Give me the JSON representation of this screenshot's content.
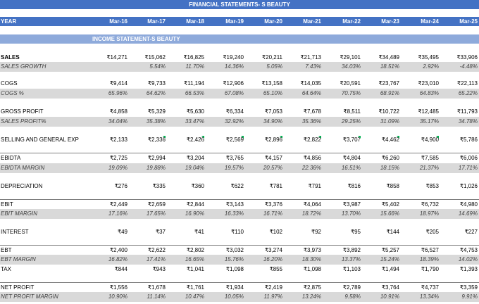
{
  "title": "FINANCIAL STATEMENTS- S BEAUTY",
  "header": {
    "label": "YEAR",
    "years": [
      "Mar-16",
      "Mar-17",
      "Mar-18",
      "Mar-19",
      "Mar-20",
      "Mar-21",
      "Mar-22",
      "Mar-23",
      "Mar-24",
      "Mar-25"
    ]
  },
  "section": "INCOME STATEMENT-S BEAUTY",
  "rows": [
    {
      "label": "SALES",
      "type": "value",
      "bold": true,
      "values": [
        "₹14,271",
        "₹15,062",
        "₹16,825",
        "₹19,240",
        "₹20,211",
        "₹21,713",
        "₹29,101",
        "₹34,489",
        "₹35,495",
        "₹33,906"
      ]
    },
    {
      "label": "SALES GROWTH",
      "type": "pct",
      "values": [
        "",
        "5.54%",
        "11.70%",
        "14.36%",
        "5.05%",
        "7.43%",
        "34.03%",
        "18.51%",
        "2.92%",
        "-4.48%"
      ]
    },
    {
      "label": "COGS",
      "type": "value",
      "values": [
        "₹9,414",
        "₹9,733",
        "₹11,194",
        "₹12,906",
        "₹13,158",
        "₹14,035",
        "₹20,591",
        "₹23,767",
        "₹23,010",
        "₹22,113"
      ]
    },
    {
      "label": "COGS %",
      "type": "pct",
      "values": [
        "65.96%",
        "64.62%",
        "66.53%",
        "67.08%",
        "65.10%",
        "64.64%",
        "70.75%",
        "68.91%",
        "64.83%",
        "65.22%"
      ]
    },
    {
      "label": "GROSS PROFIT",
      "type": "value",
      "values": [
        "₹4,858",
        "₹5,329",
        "₹5,630",
        "₹6,334",
        "₹7,053",
        "₹7,678",
        "₹8,511",
        "₹10,722",
        "₹12,485",
        "₹11,793"
      ]
    },
    {
      "label": "SALES PROFIT%",
      "type": "pct",
      "values": [
        "34.04%",
        "35.38%",
        "33.47%",
        "32.92%",
        "34.90%",
        "35.36%",
        "29.25%",
        "31.09%",
        "35.17%",
        "34.78%"
      ]
    },
    {
      "label": "SELLING AND GENERAL EXP",
      "type": "value",
      "values": [
        "₹2,133",
        "₹2,336",
        "₹2,426",
        "₹2,569",
        "₹2,896",
        "₹2,822",
        "₹3,707",
        "₹4,462",
        "₹4,900",
        "₹5,786"
      ]
    },
    {
      "label": "EBIDTA",
      "type": "value",
      "values": [
        "₹2,725",
        "₹2,994",
        "₹3,204",
        "₹3,765",
        "₹4,157",
        "₹4,856",
        "₹4,804",
        "₹6,260",
        "₹7,585",
        "₹6,006"
      ]
    },
    {
      "label": "EBIDTA MARGIN",
      "type": "pct",
      "values": [
        "19.09%",
        "19.88%",
        "19.04%",
        "19.57%",
        "20.57%",
        "22.36%",
        "16.51%",
        "18.15%",
        "21.37%",
        "17.71%"
      ]
    },
    {
      "label": "DEPRECIATION",
      "type": "value",
      "values": [
        "₹276",
        "₹335",
        "₹360",
        "₹622",
        "₹781",
        "₹791",
        "₹816",
        "₹858",
        "₹853",
        "₹1,026"
      ]
    },
    {
      "label": "EBIT",
      "type": "value",
      "values": [
        "₹2,449",
        "₹2,659",
        "₹2,844",
        "₹3,143",
        "₹3,376",
        "₹4,064",
        "₹3,987",
        "₹5,402",
        "₹6,732",
        "₹4,980"
      ]
    },
    {
      "label": "EBIT MARGIN",
      "type": "pct",
      "values": [
        "17.16%",
        "17.65%",
        "16.90%",
        "16.33%",
        "16.71%",
        "18.72%",
        "13.70%",
        "15.66%",
        "18.97%",
        "14.69%"
      ]
    },
    {
      "label": "INTEREST",
      "type": "value",
      "values": [
        "₹49",
        "₹37",
        "₹41",
        "₹110",
        "₹102",
        "₹92",
        "₹95",
        "₹144",
        "₹205",
        "₹227"
      ]
    },
    {
      "label": "EBT",
      "type": "value",
      "values": [
        "₹2,400",
        "₹2,622",
        "₹2,802",
        "₹3,032",
        "₹3,274",
        "₹3,973",
        "₹3,892",
        "₹5,257",
        "₹6,527",
        "₹4,753"
      ]
    },
    {
      "label": "EBT MARGIN",
      "type": "pct",
      "values": [
        "16.82%",
        "17.41%",
        "16.65%",
        "15.76%",
        "16.20%",
        "18.30%",
        "13.37%",
        "15.24%",
        "18.39%",
        "14.02%"
      ]
    },
    {
      "label": "TAX",
      "type": "value",
      "values": [
        "₹844",
        "₹943",
        "₹1,041",
        "₹1,098",
        "₹855",
        "₹1,098",
        "₹1,103",
        "₹1,494",
        "₹1,790",
        "₹1,393"
      ]
    },
    {
      "label": "NET PROFIT",
      "type": "value",
      "values": [
        "₹1,556",
        "₹1,678",
        "₹1,761",
        "₹1,934",
        "₹2,419",
        "₹2,875",
        "₹2,789",
        "₹3,764",
        "₹4,737",
        "₹3,359"
      ]
    },
    {
      "label": "NET PROFIT MARGIN",
      "type": "pct",
      "values": [
        "10.90%",
        "11.14%",
        "10.47%",
        "10.05%",
        "11.97%",
        "13.24%",
        "9.58%",
        "10.91%",
        "13.34%",
        "9.91%"
      ]
    }
  ]
}
